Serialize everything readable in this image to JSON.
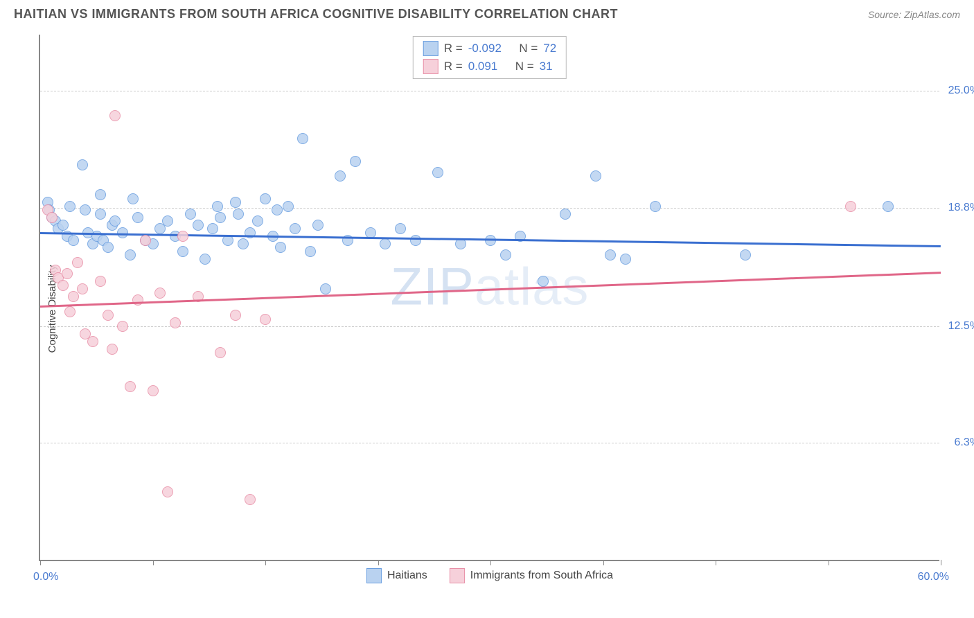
{
  "title": "HAITIAN VS IMMIGRANTS FROM SOUTH AFRICA COGNITIVE DISABILITY CORRELATION CHART",
  "source": "Source: ZipAtlas.com",
  "y_axis_label": "Cognitive Disability",
  "watermark_bold": "ZIP",
  "watermark_light": "atlas",
  "chart": {
    "type": "scatter",
    "xlim": [
      0,
      60
    ],
    "ylim": [
      0,
      28
    ],
    "x_min_label": "0.0%",
    "x_max_label": "60.0%",
    "y_ticks": [
      {
        "value": 6.3,
        "label": "6.3%"
      },
      {
        "value": 12.5,
        "label": "12.5%"
      },
      {
        "value": 18.8,
        "label": "18.8%"
      },
      {
        "value": 25.0,
        "label": "25.0%"
      }
    ],
    "x_tick_positions": [
      0,
      7.5,
      15,
      22.5,
      30,
      37.5,
      45,
      52.5,
      60
    ],
    "grid_color": "#cccccc",
    "background_color": "#ffffff",
    "marker_radius": 8,
    "series": [
      {
        "name": "Haitians",
        "fill_color": "#b9d2f0",
        "stroke_color": "#6b9fe0",
        "trend_color": "#3a6fd0",
        "r_value": "-0.092",
        "n_value": "72",
        "trend": {
          "y_start": 17.5,
          "y_end": 16.8
        },
        "points": [
          [
            0.5,
            19.0
          ],
          [
            0.6,
            18.6
          ],
          [
            0.8,
            18.2
          ],
          [
            1.0,
            18.0
          ],
          [
            1.2,
            17.6
          ],
          [
            1.5,
            17.8
          ],
          [
            1.8,
            17.2
          ],
          [
            2.0,
            18.8
          ],
          [
            2.2,
            17.0
          ],
          [
            2.8,
            21.0
          ],
          [
            3.0,
            18.6
          ],
          [
            3.2,
            17.4
          ],
          [
            3.5,
            16.8
          ],
          [
            3.8,
            17.2
          ],
          [
            4.0,
            18.4
          ],
          [
            4.2,
            17.0
          ],
          [
            4.5,
            16.6
          ],
          [
            4.8,
            17.8
          ],
          [
            5.0,
            18.0
          ],
          [
            5.5,
            17.4
          ],
          [
            6.0,
            16.2
          ],
          [
            6.5,
            18.2
          ],
          [
            7.0,
            17.0
          ],
          [
            7.5,
            16.8
          ],
          [
            8.0,
            17.6
          ],
          [
            8.5,
            18.0
          ],
          [
            9.0,
            17.2
          ],
          [
            9.5,
            16.4
          ],
          [
            10.0,
            18.4
          ],
          [
            10.5,
            17.8
          ],
          [
            11.0,
            16.0
          ],
          [
            11.5,
            17.6
          ],
          [
            12.0,
            18.2
          ],
          [
            12.5,
            17.0
          ],
          [
            13.0,
            19.0
          ],
          [
            13.5,
            16.8
          ],
          [
            14.0,
            17.4
          ],
          [
            14.5,
            18.0
          ],
          [
            15.0,
            19.2
          ],
          [
            15.5,
            17.2
          ],
          [
            16.0,
            16.6
          ],
          [
            16.5,
            18.8
          ],
          [
            17.0,
            17.6
          ],
          [
            17.5,
            22.4
          ],
          [
            18.0,
            16.4
          ],
          [
            18.5,
            17.8
          ],
          [
            19.0,
            14.4
          ],
          [
            20.0,
            20.4
          ],
          [
            20.5,
            17.0
          ],
          [
            21.0,
            21.2
          ],
          [
            22.0,
            17.4
          ],
          [
            23.0,
            16.8
          ],
          [
            24.0,
            17.6
          ],
          [
            25.0,
            17.0
          ],
          [
            26.5,
            20.6
          ],
          [
            28.0,
            16.8
          ],
          [
            30.0,
            17.0
          ],
          [
            31.0,
            16.2
          ],
          [
            32.0,
            17.2
          ],
          [
            33.5,
            14.8
          ],
          [
            35.0,
            18.4
          ],
          [
            37.0,
            20.4
          ],
          [
            38.0,
            16.2
          ],
          [
            39.0,
            16.0
          ],
          [
            41.0,
            18.8
          ],
          [
            47.0,
            16.2
          ],
          [
            56.5,
            18.8
          ],
          [
            4.0,
            19.4
          ],
          [
            6.2,
            19.2
          ],
          [
            11.8,
            18.8
          ],
          [
            15.8,
            18.6
          ],
          [
            13.2,
            18.4
          ]
        ]
      },
      {
        "name": "Immigrants from South Africa",
        "fill_color": "#f6d0da",
        "stroke_color": "#e890a8",
        "trend_color": "#e06688",
        "r_value": "0.091",
        "n_value": "31",
        "trend": {
          "y_start": 13.6,
          "y_end": 15.4
        },
        "points": [
          [
            0.5,
            18.6
          ],
          [
            0.8,
            18.2
          ],
          [
            1.0,
            15.4
          ],
          [
            1.2,
            15.0
          ],
          [
            1.5,
            14.6
          ],
          [
            1.8,
            15.2
          ],
          [
            2.0,
            13.2
          ],
          [
            2.2,
            14.0
          ],
          [
            2.5,
            15.8
          ],
          [
            2.8,
            14.4
          ],
          [
            3.0,
            12.0
          ],
          [
            3.5,
            11.6
          ],
          [
            4.0,
            14.8
          ],
          [
            4.5,
            13.0
          ],
          [
            4.8,
            11.2
          ],
          [
            5.0,
            23.6
          ],
          [
            5.5,
            12.4
          ],
          [
            6.0,
            9.2
          ],
          [
            6.5,
            13.8
          ],
          [
            7.0,
            17.0
          ],
          [
            7.5,
            9.0
          ],
          [
            8.0,
            14.2
          ],
          [
            8.5,
            3.6
          ],
          [
            9.0,
            12.6
          ],
          [
            9.5,
            17.2
          ],
          [
            10.5,
            14.0
          ],
          [
            12.0,
            11.0
          ],
          [
            13.0,
            13.0
          ],
          [
            14.0,
            3.2
          ],
          [
            15.0,
            12.8
          ],
          [
            54.0,
            18.8
          ]
        ]
      }
    ]
  },
  "legend": {
    "series1_label": "Haitians",
    "series2_label": "Immigrants from South Africa"
  },
  "stats_labels": {
    "r": "R =",
    "n": "N ="
  }
}
